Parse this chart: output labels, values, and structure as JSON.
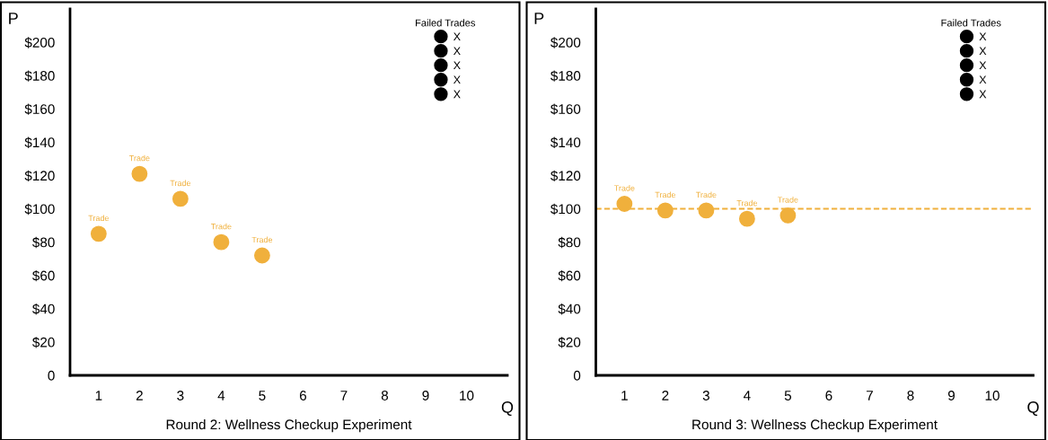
{
  "chart_data": [
    {
      "type": "scatter",
      "title": "Round 2: Wellness Checkup Experiment",
      "xlabel": "Q",
      "ylabel": "P",
      "legend_title": "Failed Trades",
      "legend": "top right",
      "marker": "circle",
      "grid": false,
      "xlim": [
        0.3,
        11.0
      ],
      "xticks": [
        1,
        2,
        3,
        4,
        5,
        6,
        7,
        8,
        9,
        10
      ],
      "ylim": [
        0,
        220
      ],
      "yticks": [
        0,
        {
          "value": 20,
          "label": "$20"
        },
        {
          "value": 40,
          "label": "$40"
        },
        {
          "value": 60,
          "label": "$60"
        },
        {
          "value": 80,
          "label": "$80"
        },
        {
          "value": 100,
          "label": "$100"
        },
        {
          "value": 120,
          "label": "$120"
        },
        {
          "value": 140,
          "label": "$140"
        },
        {
          "value": 160,
          "label": "$160"
        },
        {
          "value": 180,
          "label": "$180"
        },
        {
          "value": 200,
          "label": "$200"
        }
      ],
      "series": [
        {
          "color": "#f0b03c",
          "x": [
            1,
            2,
            3,
            4,
            5
          ],
          "values": [
            85,
            121,
            106,
            80,
            72
          ],
          "value_labels": [
            "Trade",
            "Trade",
            "Trade",
            "Trade",
            "Trade"
          ]
        },
        {
          "name": "X",
          "color": "#000000"
        },
        {
          "name": "X",
          "color": "#000000"
        },
        {
          "name": "X",
          "color": "#000000"
        },
        {
          "name": "X",
          "color": "#000000"
        },
        {
          "name": "X",
          "color": "#000000"
        }
      ]
    },
    {
      "type": "scatter",
      "title": "Round 3: Wellness Checkup Experiment",
      "xlabel": "Q",
      "ylabel": "P",
      "legend_title": "Failed Trades",
      "legend": "top right",
      "marker": "circle",
      "grid": false,
      "xlim": [
        0.3,
        11.0
      ],
      "xticks": [
        1,
        2,
        3,
        4,
        5,
        6,
        7,
        8,
        9,
        10
      ],
      "ylim": [
        0,
        220
      ],
      "yticks": [
        0,
        {
          "value": 20,
          "label": "$20"
        },
        {
          "value": 40,
          "label": "$40"
        },
        {
          "value": 60,
          "label": "$60"
        },
        {
          "value": 80,
          "label": "$80"
        },
        {
          "value": 100,
          "label": "$100"
        },
        {
          "value": 120,
          "label": "$120"
        },
        {
          "value": 140,
          "label": "$140"
        },
        {
          "value": 160,
          "label": "$160"
        },
        {
          "value": 180,
          "label": "$180"
        },
        {
          "value": 200,
          "label": "$200"
        }
      ],
      "ref_lines": [
        {
          "axis": "y",
          "value": 100,
          "color": "#f0b03c",
          "line_style": "dashed"
        }
      ],
      "series": [
        {
          "color": "#f0b03c",
          "x": [
            1,
            2,
            3,
            4,
            5
          ],
          "values": [
            103,
            99,
            99,
            94,
            96
          ],
          "value_labels": [
            "Trade",
            "Trade",
            "Trade",
            "Trade",
            "Trade"
          ]
        },
        {
          "name": "X",
          "color": "#000000"
        },
        {
          "name": "X",
          "color": "#000000"
        },
        {
          "name": "X",
          "color": "#000000"
        },
        {
          "name": "X",
          "color": "#000000"
        },
        {
          "name": "X",
          "color": "#000000"
        }
      ]
    }
  ]
}
